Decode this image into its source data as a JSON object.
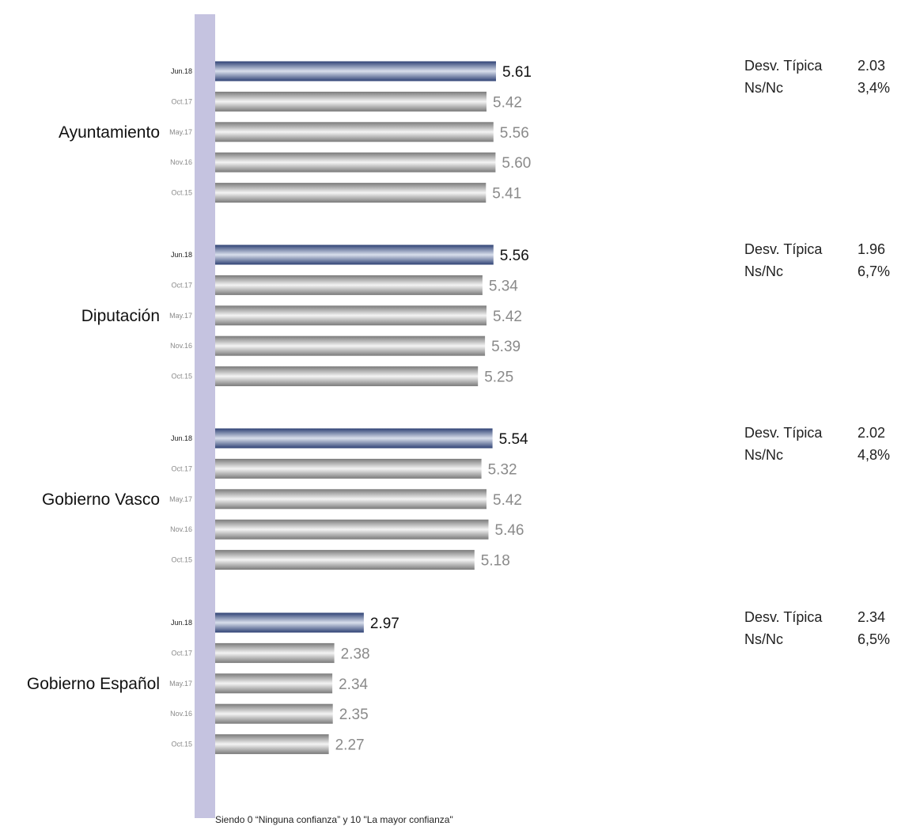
{
  "chart_data": {
    "type": "bar",
    "orientation": "horizontal",
    "scale_min": 0,
    "scale_max": 10,
    "colors": {
      "axis_band": "#c5c3e0",
      "highlight_bar_dark": "#2f4275",
      "highlight_bar_light": "#d9dfec",
      "bar_dark": "#7a7a7a",
      "bar_light": "#f4f4f4",
      "highlight_label": "#111111",
      "label": "#8a8a8a"
    },
    "groups": [
      {
        "name": "Ayuntamiento",
        "periods": [
          "Jun.18",
          "Oct.17",
          "May.17",
          "Nov.16",
          "Oct.15"
        ],
        "values": [
          5.61,
          5.42,
          5.56,
          5.6,
          5.41
        ],
        "labels": [
          "5.61",
          "5.42",
          "5.56",
          "5.60",
          "5.41"
        ],
        "stats": [
          {
            "label": "Desv. Típica",
            "value": "2.03"
          },
          {
            "label": "Ns/Nc",
            "value": "3,4%"
          }
        ]
      },
      {
        "name": "Diputación",
        "periods": [
          "Jun.18",
          "Oct.17",
          "May.17",
          "Nov.16",
          "Oct.15"
        ],
        "values": [
          5.56,
          5.34,
          5.42,
          5.39,
          5.25
        ],
        "labels": [
          "5.56",
          "5.34",
          "5.42",
          "5.39",
          "5.25"
        ],
        "stats": [
          {
            "label": "Desv. Típica",
            "value": "1.96"
          },
          {
            "label": "Ns/Nc",
            "value": "6,7%"
          }
        ]
      },
      {
        "name": "Gobierno Vasco",
        "periods": [
          "Jun.18",
          "Oct.17",
          "May.17",
          "Nov.16",
          "Oct.15"
        ],
        "values": [
          5.54,
          5.32,
          5.42,
          5.46,
          5.18
        ],
        "labels": [
          "5.54",
          "5.32",
          "5.42",
          "5.46",
          "5.18"
        ],
        "stats": [
          {
            "label": "Desv. Típica",
            "value": "2.02"
          },
          {
            "label": "Ns/Nc",
            "value": "4,8%"
          }
        ]
      },
      {
        "name": "Gobierno Español",
        "periods": [
          "Jun.18",
          "Oct.17",
          "May.17",
          "Nov.16",
          "Oct.15"
        ],
        "values": [
          2.97,
          2.38,
          2.34,
          2.35,
          2.27
        ],
        "labels": [
          "2.97",
          "2.38",
          "2.34",
          "2.35",
          "2.27"
        ],
        "stats": [
          {
            "label": "Desv. Típica",
            "value": "2.34"
          },
          {
            "label": "Ns/Nc",
            "value": "6,5%"
          }
        ]
      }
    ],
    "footnote": "Siendo 0 “Ninguna confianza” y 10 \"La mayor confianza\""
  }
}
